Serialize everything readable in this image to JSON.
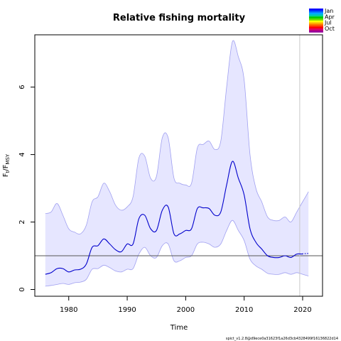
{
  "chart_data": {
    "type": "line",
    "title": "Relative fishing mortality",
    "xlabel": "Time",
    "ylabel": {
      "base": "F",
      "sub_t": "t",
      "slash": "/F",
      "sub_msy": "MSY"
    },
    "xlim": [
      1974.2,
      2023.4
    ],
    "ylim": [
      -0.2,
      7.55
    ],
    "xticks": [
      1980,
      1990,
      2000,
      2010,
      2020
    ],
    "yticks": [
      0,
      2,
      4,
      6
    ],
    "reference_line": 1.0,
    "vertical_line_x": 2019.5,
    "colors": {
      "median_line": "#0000cc",
      "ci_fill": "#e6e6ff",
      "ci_border": "#a0a0f0",
      "reference": "#555555",
      "vline": "#c8c8c8"
    },
    "series": [
      {
        "role": "median",
        "x": [
          1976,
          1977,
          1978,
          1979,
          1980,
          1981,
          1982,
          1983,
          1984,
          1985,
          1986,
          1987,
          1988,
          1989,
          1990,
          1991,
          1992,
          1993,
          1994,
          1995,
          1996,
          1997,
          1998,
          1999,
          2000,
          2001,
          2002,
          2003,
          2004,
          2005,
          2006,
          2007,
          2008,
          2009,
          2010,
          2011,
          2012,
          2013,
          2014,
          2015,
          2016,
          2017,
          2018,
          2019,
          2020
        ],
        "y": [
          0.45,
          0.5,
          0.62,
          0.62,
          0.52,
          0.58,
          0.6,
          0.75,
          1.25,
          1.3,
          1.5,
          1.35,
          1.18,
          1.12,
          1.35,
          1.35,
          2.1,
          2.2,
          1.8,
          1.75,
          2.35,
          2.45,
          1.65,
          1.65,
          1.75,
          1.8,
          2.4,
          2.42,
          2.4,
          2.2,
          2.3,
          3.1,
          3.8,
          3.3,
          2.8,
          1.8,
          1.4,
          1.2,
          1.0,
          0.95,
          0.95,
          1.0,
          0.95,
          1.05,
          1.05
        ]
      },
      {
        "role": "ci_upper",
        "x": [
          1976,
          1977,
          1978,
          1979,
          1980,
          1981,
          1982,
          1983,
          1984,
          1985,
          1986,
          1987,
          1988,
          1989,
          1990,
          1991,
          1992,
          1993,
          1994,
          1995,
          1996,
          1997,
          1998,
          1999,
          2000,
          2001,
          2002,
          2003,
          2004,
          2005,
          2006,
          2007,
          2008,
          2009,
          2010,
          2011,
          2012,
          2013,
          2014,
          2015,
          2016,
          2017,
          2018,
          2019,
          2020,
          2021
        ],
        "y": [
          2.25,
          2.3,
          2.55,
          2.2,
          1.8,
          1.7,
          1.65,
          1.9,
          2.6,
          2.75,
          3.15,
          2.9,
          2.5,
          2.35,
          2.45,
          2.75,
          3.9,
          3.95,
          3.3,
          3.35,
          4.5,
          4.5,
          3.3,
          3.15,
          3.1,
          3.15,
          4.2,
          4.3,
          4.4,
          4.15,
          4.4,
          6.0,
          7.35,
          6.9,
          6.2,
          4.0,
          3.0,
          2.6,
          2.15,
          2.05,
          2.05,
          2.15,
          2.0,
          2.3,
          2.6,
          2.9
        ]
      },
      {
        "role": "ci_lower",
        "x": [
          1976,
          1977,
          1978,
          1979,
          1980,
          1981,
          1982,
          1983,
          1984,
          1985,
          1986,
          1987,
          1988,
          1989,
          1990,
          1991,
          1992,
          1993,
          1994,
          1995,
          1996,
          1997,
          1998,
          1999,
          2000,
          2001,
          2002,
          2003,
          2004,
          2005,
          2006,
          2007,
          2008,
          2009,
          2010,
          2011,
          2012,
          2013,
          2014,
          2015,
          2016,
          2017,
          2018,
          2019,
          2020,
          2021
        ],
        "y": [
          0.1,
          0.12,
          0.15,
          0.18,
          0.15,
          0.2,
          0.22,
          0.3,
          0.6,
          0.62,
          0.72,
          0.65,
          0.55,
          0.52,
          0.6,
          0.62,
          1.05,
          1.25,
          1.0,
          0.95,
          1.3,
          1.35,
          0.85,
          0.85,
          0.95,
          1.0,
          1.35,
          1.4,
          1.35,
          1.25,
          1.35,
          1.75,
          2.05,
          1.75,
          1.45,
          0.9,
          0.7,
          0.6,
          0.48,
          0.45,
          0.45,
          0.5,
          0.45,
          0.5,
          0.45,
          0.4
        ]
      },
      {
        "role": "forecast",
        "x": [
          2019.5,
          2021
        ],
        "y": [
          1.05,
          1.07
        ]
      }
    ],
    "legend": {
      "placement": "top-right",
      "labels": [
        "Jan",
        "Apr",
        "Jul",
        "Oct"
      ],
      "colors": [
        "#0000ff",
        "#0055ff",
        "#00aaff",
        "#00ccaa",
        "#00cc00",
        "#66dd00",
        "#ffff00",
        "#ffaa00",
        "#ff5500",
        "#ff0000",
        "#dd0066",
        "#990099"
      ]
    }
  },
  "footer_text": "spict_v1.2.8@d9ece0a31623f1a26d3cb4328499f16136822d14"
}
